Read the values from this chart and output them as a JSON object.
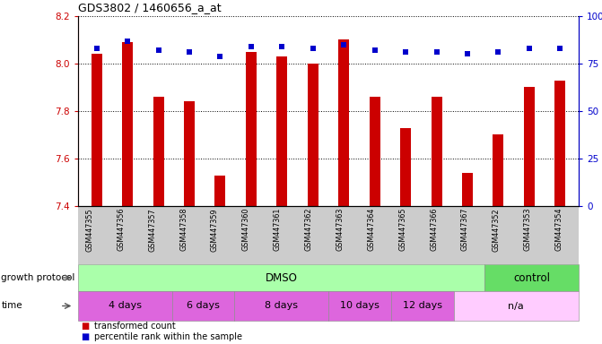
{
  "title": "GDS3802 / 1460656_a_at",
  "samples": [
    "GSM447355",
    "GSM447356",
    "GSM447357",
    "GSM447358",
    "GSM447359",
    "GSM447360",
    "GSM447361",
    "GSM447362",
    "GSM447363",
    "GSM447364",
    "GSM447365",
    "GSM447366",
    "GSM447367",
    "GSM447352",
    "GSM447353",
    "GSM447354"
  ],
  "bar_values": [
    8.04,
    8.09,
    7.86,
    7.84,
    7.53,
    8.05,
    8.03,
    8.0,
    8.1,
    7.86,
    7.73,
    7.86,
    7.54,
    7.7,
    7.9,
    7.93
  ],
  "percentile_values": [
    83,
    87,
    82,
    81,
    79,
    84,
    84,
    83,
    85,
    82,
    81,
    81,
    80,
    81,
    83,
    83
  ],
  "bar_bottom": 7.4,
  "ylim": [
    7.4,
    8.2
  ],
  "right_ylim": [
    0,
    100
  ],
  "right_yticks": [
    0,
    25,
    50,
    75,
    100
  ],
  "right_yticklabels": [
    "0",
    "25",
    "50",
    "75",
    "100%"
  ],
  "left_yticks": [
    7.4,
    7.6,
    7.8,
    8.0,
    8.2
  ],
  "bar_color": "#cc0000",
  "dot_color": "#0000cc",
  "background_color": "#ffffff",
  "grid_color": "#000000",
  "sample_label_bg": "#cccccc",
  "dmso_color": "#aaffaa",
  "control_color": "#66dd66",
  "time_main_color": "#dd66dd",
  "time_na_color": "#ffccff",
  "xlabel_color": "#cc0000",
  "right_ylabel_color": "#0000cc",
  "n_dmso": 13,
  "n_control": 3,
  "time_boundaries": [
    0,
    3,
    5,
    8,
    10,
    12,
    16
  ],
  "time_labels": [
    "4 days",
    "6 days",
    "8 days",
    "10 days",
    "12 days",
    "n/a"
  ]
}
